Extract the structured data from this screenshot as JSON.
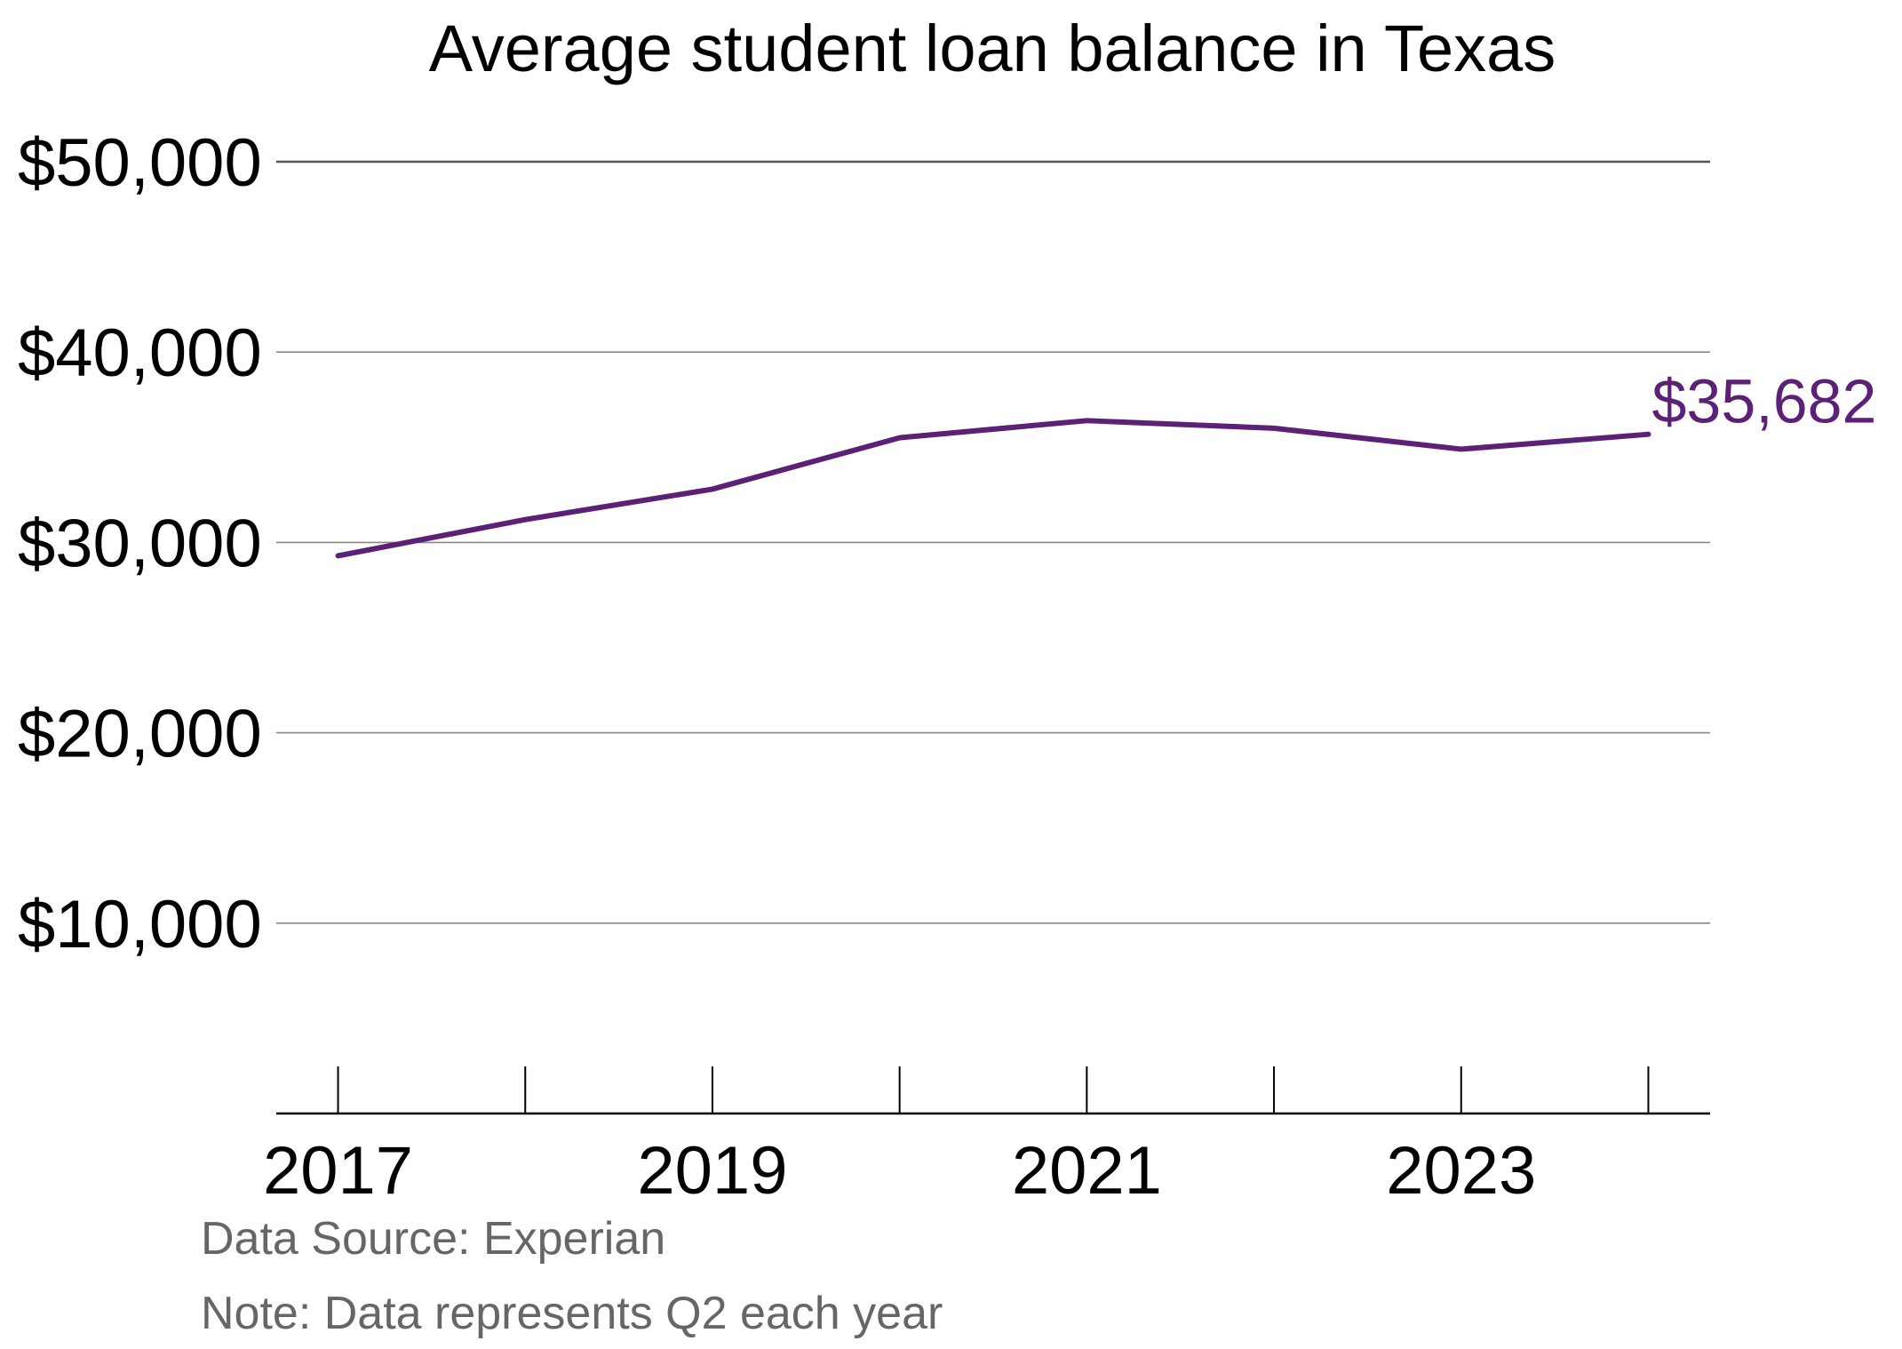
{
  "chart_data": {
    "type": "line",
    "title": "Average student loan balance in Texas",
    "xlabel": "",
    "ylabel": "",
    "x": [
      2017,
      2018,
      2019,
      2020,
      2021,
      2022,
      2023,
      2024
    ],
    "x_tick_labels": [
      "2017",
      "2019",
      "2021",
      "2023"
    ],
    "x_tick_label_values": [
      2017,
      2019,
      2021,
      2023
    ],
    "y_ticks": [
      10000,
      20000,
      30000,
      40000,
      50000
    ],
    "y_tick_labels": [
      "$10,000",
      "$20,000",
      "$30,000",
      "$40,000",
      "$50,000"
    ],
    "ylim": [
      0,
      50000
    ],
    "xlim": [
      2016.67,
      2024.33
    ],
    "grid": true,
    "series": [
      {
        "values": [
          29300,
          31200,
          32800,
          35500,
          36400,
          36000,
          34900,
          35682
        ],
        "color": "#5c2176"
      }
    ],
    "end_label": "$35,682",
    "footnotes": [
      "Data Source: Experian",
      "Note: Data represents Q2 each year"
    ]
  }
}
